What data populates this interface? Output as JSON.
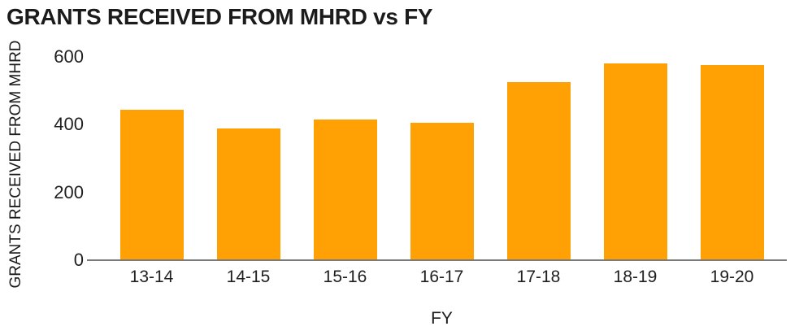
{
  "chart_data": {
    "type": "bar",
    "title": "GRANTS RECEIVED FROM MHRD vs FY",
    "xlabel": "FY",
    "ylabel": "GRANTS RECEIVED FROM MHRD",
    "categories": [
      "13-14",
      "14-15",
      "15-16",
      "16-17",
      "17-18",
      "18-19",
      "19-20"
    ],
    "values": [
      445,
      390,
      415,
      405,
      525,
      580,
      575
    ],
    "yticks": [
      0,
      200,
      400,
      600
    ],
    "ylim": [
      0,
      600
    ],
    "grid": false,
    "legend_position": "none",
    "bar_color": "#FFA005",
    "axis_line_color": "#7A7A7A",
    "text_color": "#1B1B1B",
    "background_color": "#FFFFFF"
  }
}
